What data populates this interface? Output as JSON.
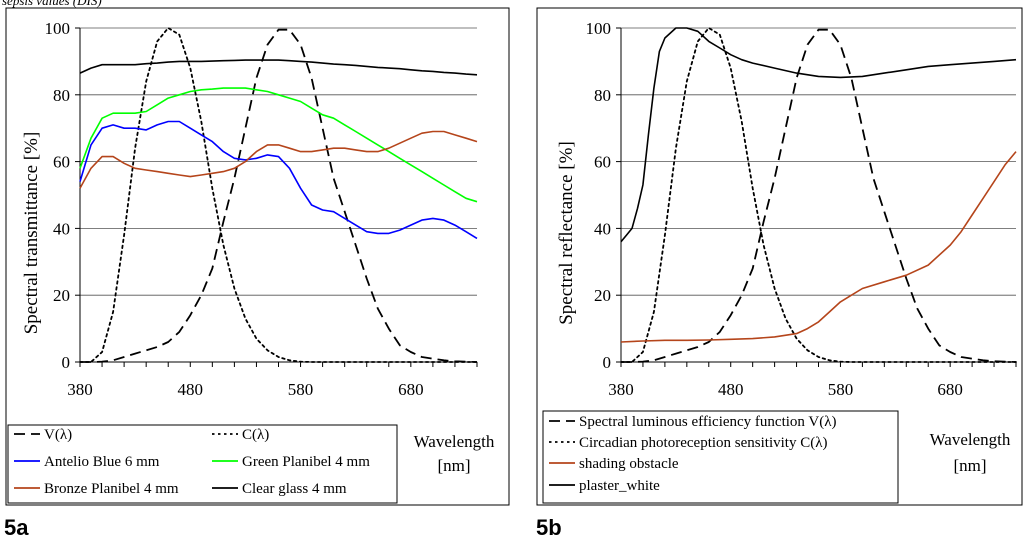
{
  "header_text": "sepsis values (DIS)",
  "figure_labels": [
    "5a",
    "5b"
  ],
  "chart_data": [
    {
      "type": "line",
      "panel_label": "5a",
      "ylabel": "Spectral transmittance [%]",
      "xlabel_lines": [
        "Wavelength",
        "[nm]"
      ],
      "xlim": [
        380,
        740
      ],
      "ylim": [
        0,
        100
      ],
      "x_ticks": [
        380,
        480,
        580,
        680
      ],
      "y_ticks": [
        0,
        20,
        40,
        60,
        80,
        100
      ],
      "grid": "horizontal",
      "legend_position": "bottom",
      "series": [
        {
          "name": "V(λ)",
          "color": "#000000",
          "dash": "dashed",
          "x": [
            380,
            390,
            400,
            410,
            420,
            430,
            440,
            450,
            460,
            470,
            480,
            490,
            500,
            510,
            520,
            530,
            540,
            550,
            560,
            570,
            580,
            590,
            600,
            610,
            620,
            630,
            640,
            650,
            660,
            670,
            680,
            690,
            700,
            710,
            720,
            730,
            740
          ],
          "y": [
            0,
            0,
            0.1,
            0.5,
            1.5,
            2.5,
            3.5,
            4.5,
            6,
            9,
            14,
            20,
            28,
            42,
            55,
            70,
            85,
            95,
            99.5,
            99.5,
            95,
            85,
            70,
            55,
            45,
            35,
            25,
            16,
            10,
            5,
            3,
            1.5,
            1,
            0.5,
            0.2,
            0.1,
            0
          ]
        },
        {
          "name": "C(λ)",
          "color": "#000000",
          "dash": "dotted",
          "x": [
            380,
            390,
            400,
            410,
            420,
            430,
            440,
            450,
            460,
            470,
            480,
            490,
            500,
            510,
            520,
            530,
            540,
            550,
            560,
            570,
            580,
            590,
            600,
            610,
            620,
            640,
            660,
            680,
            700,
            720,
            740
          ],
          "y": [
            0,
            0,
            3,
            15,
            38,
            64,
            84,
            96,
            100,
            98,
            88,
            72,
            52,
            35,
            22,
            13,
            7,
            3.5,
            1.5,
            0.5,
            0.1,
            0,
            0,
            0,
            0,
            0,
            0,
            0,
            0,
            0,
            0
          ]
        },
        {
          "name": "Antelio Blue 6 mm",
          "color": "#0000ff",
          "dash": "solid",
          "x": [
            380,
            390,
            400,
            410,
            420,
            430,
            440,
            450,
            460,
            470,
            480,
            490,
            500,
            510,
            520,
            530,
            540,
            550,
            560,
            570,
            580,
            590,
            600,
            610,
            620,
            630,
            640,
            650,
            660,
            670,
            680,
            690,
            700,
            710,
            720,
            730,
            740
          ],
          "y": [
            54,
            65,
            70,
            71,
            70,
            70,
            69.5,
            71,
            72,
            72,
            70,
            68,
            66,
            63,
            61,
            60.5,
            61,
            62,
            61.5,
            58,
            52,
            47,
            45.5,
            45,
            43,
            41,
            39,
            38.5,
            38.5,
            39.5,
            41,
            42.5,
            43,
            42.5,
            41,
            39,
            37
          ]
        },
        {
          "name": "Green Planibel 4 mm",
          "color": "#00ff00",
          "dash": "solid",
          "x": [
            380,
            390,
            400,
            410,
            420,
            430,
            440,
            450,
            460,
            470,
            480,
            490,
            500,
            510,
            520,
            530,
            540,
            550,
            560,
            570,
            580,
            590,
            600,
            610,
            620,
            630,
            640,
            650,
            660,
            670,
            680,
            690,
            700,
            710,
            720,
            730,
            740
          ],
          "y": [
            58,
            67,
            73,
            74.5,
            74.5,
            74.5,
            75,
            77,
            79,
            80,
            81,
            81.5,
            81.7,
            82,
            82,
            82,
            81.5,
            81,
            80,
            79,
            78,
            76,
            74,
            73,
            71,
            69,
            67,
            65,
            63,
            61,
            59,
            57,
            55,
            53,
            51,
            49,
            48
          ]
        },
        {
          "name": "Bronze Planibel 4 mm",
          "color": "#b5451b",
          "dash": "solid",
          "x": [
            380,
            390,
            400,
            410,
            420,
            430,
            440,
            450,
            460,
            470,
            480,
            490,
            500,
            510,
            520,
            530,
            540,
            550,
            560,
            570,
            580,
            590,
            600,
            610,
            620,
            630,
            640,
            650,
            660,
            670,
            680,
            690,
            700,
            710,
            720,
            730,
            740
          ],
          "y": [
            52,
            58,
            61.5,
            61.5,
            59.5,
            58,
            57.5,
            57,
            56.5,
            56,
            55.5,
            56,
            56.5,
            57,
            58,
            60,
            63,
            65,
            65,
            64,
            63,
            63,
            63.5,
            64,
            64,
            63.5,
            63,
            63,
            64,
            65.5,
            67,
            68.5,
            69,
            69,
            68,
            67,
            66
          ]
        },
        {
          "name": "Clear glass 4 mm",
          "color": "#000000",
          "dash": "solid",
          "x": [
            380,
            390,
            400,
            410,
            420,
            430,
            440,
            450,
            460,
            470,
            480,
            490,
            500,
            510,
            520,
            530,
            540,
            550,
            560,
            570,
            580,
            590,
            600,
            610,
            620,
            630,
            640,
            650,
            660,
            670,
            680,
            690,
            700,
            710,
            720,
            730,
            740
          ],
          "y": [
            86.5,
            88,
            89,
            89,
            89,
            89,
            89.3,
            89.5,
            89.8,
            90,
            90,
            90,
            90.1,
            90.2,
            90.3,
            90.4,
            90.4,
            90.4,
            90.4,
            90.2,
            90,
            89.8,
            89.5,
            89.2,
            89,
            88.8,
            88.5,
            88.2,
            88,
            87.8,
            87.5,
            87.2,
            87,
            86.7,
            86.5,
            86.2,
            86
          ]
        }
      ]
    },
    {
      "type": "line",
      "panel_label": "5b",
      "ylabel": "Spectral reflectance [%]",
      "xlabel_lines": [
        "Wavelength",
        "[nm]"
      ],
      "xlim": [
        380,
        740
      ],
      "ylim": [
        0,
        100
      ],
      "x_ticks": [
        380,
        480,
        580,
        680
      ],
      "y_ticks": [
        0,
        20,
        40,
        60,
        80,
        100
      ],
      "grid": "horizontal",
      "legend_position": "bottom",
      "series": [
        {
          "name": "Spectral luminous efficiency function V(λ)",
          "color": "#000000",
          "dash": "dashed",
          "x": [
            380,
            390,
            400,
            410,
            420,
            430,
            440,
            450,
            460,
            470,
            480,
            490,
            500,
            510,
            520,
            530,
            540,
            550,
            560,
            570,
            580,
            590,
            600,
            610,
            620,
            630,
            640,
            650,
            660,
            670,
            680,
            690,
            700,
            710,
            720,
            730,
            740
          ],
          "y": [
            0,
            0,
            0.1,
            0.5,
            1.5,
            2.5,
            3.5,
            4.5,
            6,
            9,
            14,
            20,
            28,
            42,
            55,
            70,
            85,
            95,
            99.5,
            99.5,
            95,
            85,
            70,
            55,
            45,
            35,
            25,
            16,
            10,
            5,
            3,
            1.5,
            1,
            0.5,
            0.2,
            0.1,
            0
          ]
        },
        {
          "name": "Circadian photoreception sensitivity C(λ)",
          "color": "#000000",
          "dash": "dotted",
          "x": [
            380,
            390,
            400,
            410,
            420,
            430,
            440,
            450,
            460,
            470,
            480,
            490,
            500,
            510,
            520,
            530,
            540,
            550,
            560,
            570,
            580,
            590,
            600,
            620,
            640,
            660,
            680,
            700,
            720,
            740
          ],
          "y": [
            0,
            0,
            3,
            15,
            38,
            64,
            84,
            96,
            100,
            98,
            88,
            72,
            52,
            35,
            22,
            13,
            7,
            3.5,
            1.5,
            0.5,
            0.1,
            0,
            0,
            0,
            0,
            0,
            0,
            0,
            0,
            0
          ]
        },
        {
          "name": "shading obstacle",
          "color": "#b5451b",
          "dash": "solid",
          "x": [
            380,
            400,
            420,
            440,
            460,
            480,
            500,
            520,
            540,
            550,
            560,
            570,
            580,
            590,
            600,
            620,
            640,
            660,
            680,
            690,
            700,
            710,
            720,
            730,
            740
          ],
          "y": [
            6,
            6.3,
            6.5,
            6.5,
            6.6,
            6.8,
            7,
            7.5,
            8.5,
            10,
            12,
            15,
            18,
            20,
            22,
            24,
            26,
            29,
            35,
            39,
            44,
            49,
            54,
            59,
            63
          ]
        },
        {
          "name": "plaster_white",
          "color": "#000000",
          "dash": "solid",
          "x": [
            380,
            385,
            390,
            395,
            400,
            405,
            410,
            415,
            420,
            430,
            440,
            450,
            460,
            470,
            480,
            490,
            500,
            520,
            540,
            560,
            580,
            600,
            620,
            640,
            660,
            680,
            700,
            720,
            740
          ],
          "y": [
            36,
            38,
            40,
            46,
            53,
            68,
            82,
            93,
            97,
            100,
            100,
            99,
            96,
            94,
            92,
            90.5,
            89.5,
            88,
            86.5,
            85.5,
            85.2,
            85.5,
            86.5,
            87.5,
            88.5,
            89,
            89.5,
            90,
            90.5
          ]
        }
      ]
    }
  ]
}
